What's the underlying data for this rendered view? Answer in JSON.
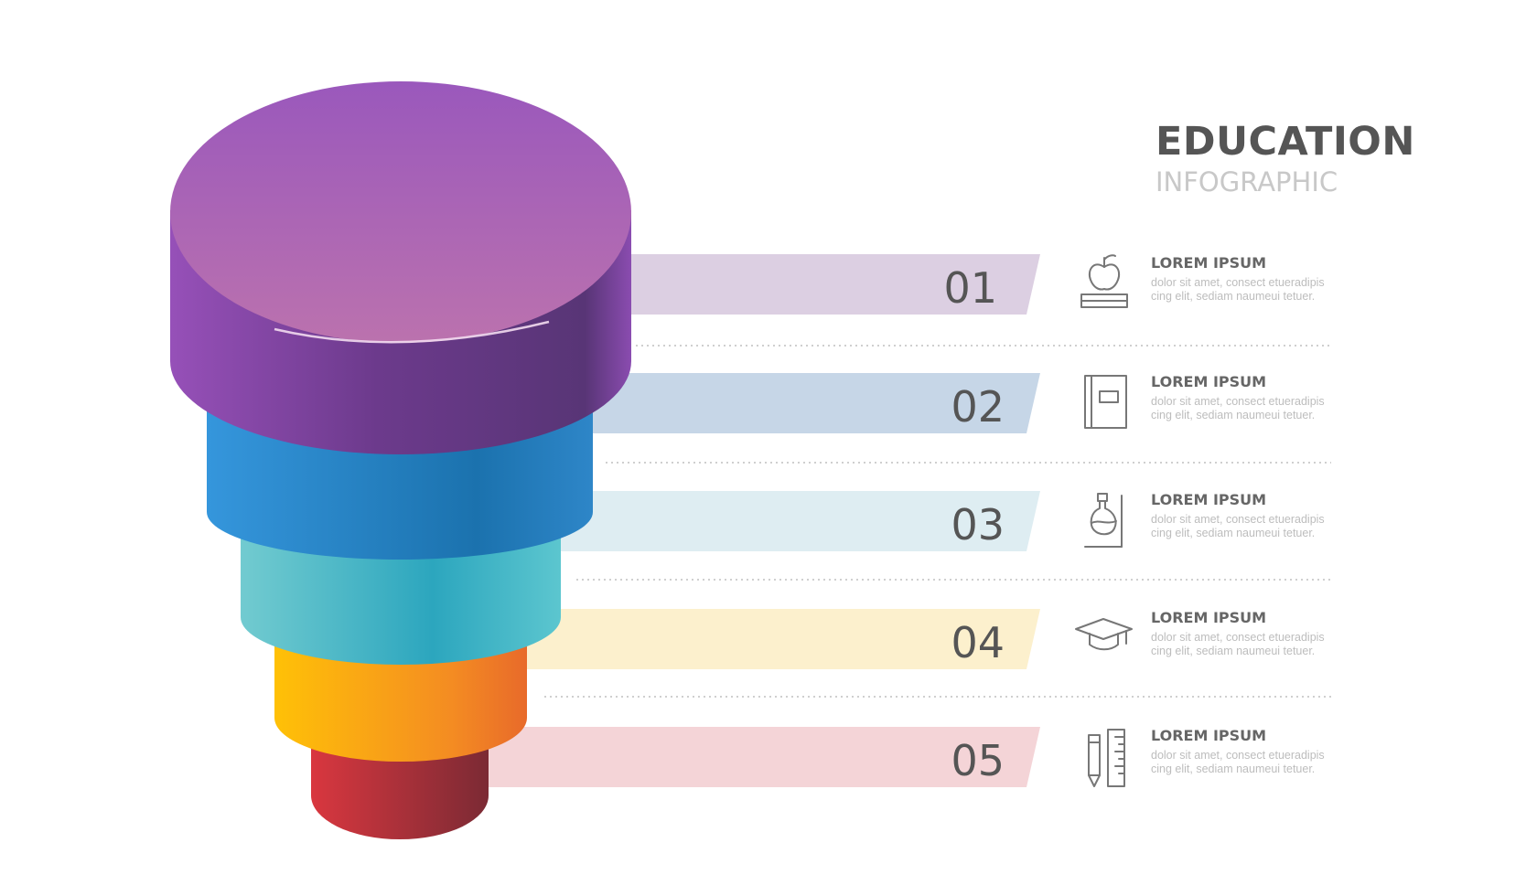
{
  "header": {
    "title": "EDUCATION",
    "subtitle": "INFOGRAPHIC"
  },
  "chart_data": {
    "type": "funnel",
    "levels": [
      {
        "number": "01",
        "color": "#9b59b6",
        "band_color": "#dccfe2",
        "icon": "apple-on-books-icon"
      },
      {
        "number": "02",
        "color": "#2e8ad8",
        "band_color": "#c6d6e7",
        "icon": "book-icon"
      },
      {
        "number": "03",
        "color": "#4fbfcc",
        "band_color": "#deedf2",
        "icon": "flask-icon"
      },
      {
        "number": "04",
        "color": "#fbb615",
        "band_color": "#fcf0cd",
        "icon": "graduation-cap-icon"
      },
      {
        "number": "05",
        "color": "#c7303c",
        "band_color": "#f4d4d7",
        "icon": "pencil-ruler-icon"
      }
    ]
  },
  "items": [
    {
      "heading": "LOREM IPSUM",
      "text": "dolor sit amet, consect etueradipis cing elit, sediam naumeui tetuer."
    },
    {
      "heading": "LOREM IPSUM",
      "text": "dolor sit amet, consect etueradipis cing elit, sediam naumeui tetuer."
    },
    {
      "heading": "LOREM IPSUM",
      "text": "dolor sit amet, consect etueradipis cing elit, sediam naumeui tetuer."
    },
    {
      "heading": "LOREM IPSUM",
      "text": "dolor sit amet, consect etueradipis cing elit, sediam naumeui tetuer."
    },
    {
      "heading": "LOREM IPSUM",
      "text": "dolor sit amet, consect etueradipis cing elit, sediam naumeui tetuer."
    }
  ],
  "colors": {
    "purple_light": "#b36fb0",
    "purple_dark": "#5c3679",
    "blue_light": "#3596dc",
    "blue_dark": "#1b6fa8",
    "teal_light": "#72cbd0",
    "teal_dark": "#2ca6be",
    "yellow_light": "#ffc107",
    "yellow_dark": "#ee7d27",
    "red_light": "#d9373f",
    "red_dark": "#7b2a34",
    "icon_stroke": "#777777",
    "divider": "#cfcfcf"
  }
}
